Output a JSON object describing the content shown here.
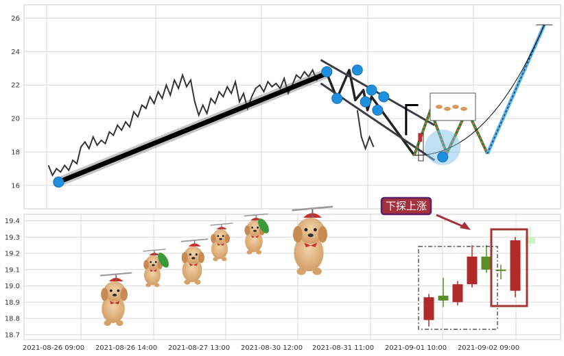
{
  "chart_data": [
    {
      "type": "line",
      "panel": "price",
      "ylim": [
        14.6,
        26.8
      ],
      "yticks": [
        16,
        18,
        20,
        22,
        24,
        26
      ],
      "grid": true,
      "series": [
        {
          "style": "thin-line",
          "color": "#333333",
          "points": [
            [
              0,
              17.2
            ],
            [
              1,
              16.6
            ],
            [
              2,
              17.0
            ],
            [
              3,
              16.8
            ],
            [
              4,
              17.2
            ],
            [
              5,
              16.9
            ],
            [
              6,
              17.5
            ],
            [
              7,
              17.3
            ],
            [
              8,
              18.3
            ],
            [
              9,
              18.6
            ],
            [
              10,
              18.2
            ],
            [
              11,
              18.9
            ],
            [
              12,
              18.4
            ],
            [
              13,
              18.7
            ],
            [
              14,
              18.5
            ],
            [
              15,
              19.2
            ],
            [
              16,
              19.0
            ],
            [
              17,
              19.6
            ],
            [
              18,
              19.3
            ],
            [
              19,
              19.8
            ],
            [
              20,
              19.5
            ],
            [
              21,
              20.4
            ],
            [
              22,
              20.1
            ],
            [
              23,
              20.8
            ],
            [
              24,
              20.6
            ],
            [
              25,
              21.3
            ],
            [
              26,
              20.9
            ],
            [
              27,
              21.6
            ],
            [
              28,
              21.2
            ],
            [
              29,
              22.0
            ],
            [
              30,
              21.4
            ],
            [
              31,
              22.3
            ],
            [
              32,
              21.8
            ],
            [
              33,
              22.6
            ],
            [
              34,
              21.9
            ],
            [
              35,
              22.3
            ],
            [
              36,
              21.0
            ],
            [
              37,
              20.2
            ],
            [
              38,
              20.8
            ],
            [
              39,
              20.3
            ],
            [
              40,
              21.2
            ],
            [
              41,
              20.9
            ],
            [
              42,
              21.6
            ],
            [
              43,
              21.3
            ],
            [
              44,
              21.9
            ],
            [
              45,
              21.5
            ],
            [
              46,
              22.2
            ],
            [
              47,
              21.0
            ],
            [
              48,
              21.5
            ],
            [
              49,
              20.6
            ],
            [
              50,
              21.3
            ],
            [
              51,
              21.8
            ],
            [
              52,
              22.0
            ],
            [
              53,
              21.6
            ],
            [
              54,
              22.2
            ],
            [
              55,
              21.9
            ],
            [
              56,
              22.1
            ],
            [
              57,
              21.8
            ],
            [
              58,
              22.4
            ],
            [
              59,
              21.5
            ],
            [
              60,
              22.0
            ],
            [
              61,
              22.6
            ],
            [
              62,
              22.4
            ],
            [
              63,
              22.8
            ],
            [
              64,
              22.5
            ],
            [
              65,
              22.9
            ],
            [
              66,
              22.3
            ],
            [
              67,
              22.6
            ]
          ]
        },
        {
          "style": "gap-line",
          "color": "#333333",
          "points": [
            [
              76,
              20.5
            ],
            [
              77,
              18.9
            ],
            [
              78,
              18.2
            ],
            [
              79,
              18.9
            ],
            [
              80,
              18.3
            ]
          ]
        },
        {
          "style": "thick-line",
          "color": "#000000",
          "points": [
            [
              2.5,
              16.2
            ],
            [
              68.5,
              22.7
            ]
          ]
        },
        {
          "style": "wave",
          "color": "#222222",
          "points": [
            [
              68.5,
              22.7
            ],
            [
              71,
              21.2
            ],
            [
              74,
              22.9
            ],
            [
              75.5,
              21.1
            ],
            [
              77.5,
              21.7
            ],
            [
              78.5,
              20.5
            ],
            [
              79.5,
              21.3
            ],
            [
              90,
              17.8
            ]
          ]
        },
        {
          "style": "channel",
          "color": "#3a3d45",
          "points": [
            [
              67,
              23.5
            ],
            [
              95,
              19.6
            ]
          ]
        },
        {
          "style": "channel",
          "color": "#3a3d45",
          "points": [
            [
              67,
              22.1
            ],
            [
              95,
              17.5
            ]
          ]
        },
        {
          "style": "steps",
          "color": "#000000",
          "points": [
            [
              88,
              19.0
            ],
            [
              88,
              20.8
            ],
            [
              91,
              20.8
            ]
          ]
        },
        {
          "style": "zigzag",
          "color": "#e06040",
          "points": [
            [
              90,
              17.8
            ],
            [
              94,
              20.5
            ],
            [
              98,
              17.9
            ],
            [
              103,
              20.5
            ],
            [
              108,
              17.9
            ]
          ]
        },
        {
          "style": "dashed-up",
          "color": "#58b0e8",
          "points": [
            [
              108,
              17.9
            ],
            [
              122,
              25.6
            ]
          ]
        },
        {
          "style": "curve",
          "color": "#000000",
          "points": [
            [
              90,
              17.8
            ],
            [
              108,
              19.3
            ],
            [
              122,
              25.6
            ]
          ]
        },
        {
          "style": "markers",
          "color": "#1f8fe0",
          "points": [
            [
              2.5,
              16.2
            ],
            [
              68.5,
              22.8
            ],
            [
              71,
              21.2
            ],
            [
              76,
              22.9
            ],
            [
              78,
              21.0
            ],
            [
              79.5,
              21.7
            ],
            [
              81,
              20.5
            ],
            [
              82.5,
              21.3
            ],
            [
              97,
              17.7
            ]
          ]
        }
      ]
    },
    {
      "type": "candlestick",
      "panel": "kline",
      "ylim": [
        18.67,
        19.44
      ],
      "yticks": [
        18.7,
        18.8,
        18.9,
        19.0,
        19.1,
        19.2,
        19.3,
        19.4
      ],
      "grid": true,
      "x_tick_labels": [
        "2021-08-26 09:00",
        "2021-08-26 14:00",
        "2021-08-27 13:00",
        "2021-08-30 12:00",
        "2021-08-31 11:00",
        "2021-09-01 10:00",
        "2021-09-02 09:00"
      ],
      "candles": [
        {
          "open": 18.79,
          "close": 18.93,
          "low": 18.75,
          "high": 18.95,
          "color": "#b02a2a"
        },
        {
          "open": 18.91,
          "close": 18.94,
          "low": 18.87,
          "high": 19.05,
          "color": "#5a8f27"
        },
        {
          "open": 18.9,
          "close": 19.01,
          "low": 18.88,
          "high": 19.03,
          "color": "#b02a2a"
        },
        {
          "open": 19.01,
          "close": 19.18,
          "low": 18.99,
          "high": 19.25,
          "color": "#b02a2a"
        },
        {
          "open": 19.18,
          "close": 19.1,
          "low": 19.08,
          "high": 19.25,
          "color": "#5a8f27"
        },
        {
          "open": 19.1,
          "close": 19.1,
          "low": 19.04,
          "high": 19.13,
          "color": "#5a8f27"
        },
        {
          "open": 18.97,
          "close": 19.28,
          "low": 18.93,
          "high": 19.3,
          "color": "#b02a2a"
        },
        {
          "open": 19.3,
          "close": 19.26,
          "low": 19.24,
          "high": 19.37,
          "color": "#c9f5c5"
        }
      ],
      "annotation": "下探上涨"
    }
  ]
}
